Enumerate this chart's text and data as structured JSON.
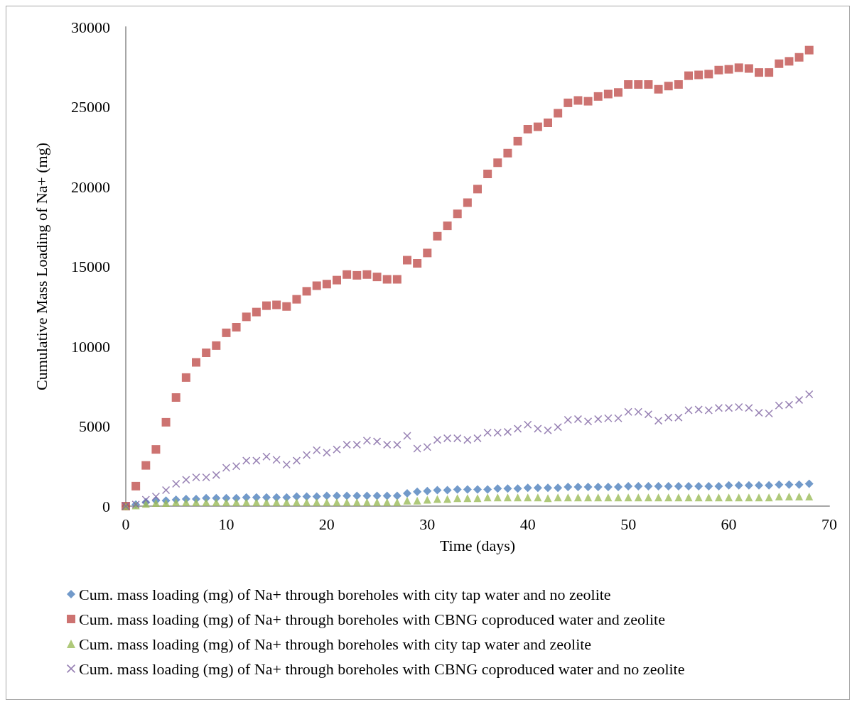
{
  "chart_data": {
    "type": "scatter",
    "xlabel": "Time (days)",
    "ylabel": "Cumulative Mass Loading of Na+ (mg)",
    "xlim": [
      0,
      70
    ],
    "xticks": [
      0,
      10,
      20,
      30,
      40,
      50,
      60,
      70
    ],
    "ylim": [
      0,
      30000
    ],
    "yticks": [
      0,
      5000,
      10000,
      15000,
      20000,
      25000,
      30000
    ],
    "grid": false,
    "legend": "bottom",
    "x": [
      0,
      1,
      2,
      3,
      4,
      5,
      6,
      7,
      8,
      9,
      10,
      11,
      12,
      13,
      14,
      15,
      16,
      17,
      18,
      19,
      20,
      21,
      22,
      23,
      24,
      25,
      26,
      27,
      28,
      29,
      30,
      31,
      32,
      33,
      34,
      35,
      36,
      37,
      38,
      39,
      40,
      41,
      42,
      43,
      44,
      45,
      46,
      47,
      48,
      49,
      50,
      51,
      52,
      53,
      54,
      55,
      56,
      57,
      58,
      59,
      60,
      61,
      62,
      63,
      64,
      65,
      66,
      67,
      68
    ],
    "series": [
      {
        "name": "Cum. mass loading (mg) of Na+ through boreholes with city tap water and no zeolite",
        "color": "#4f81bd",
        "marker": "diamond",
        "values": [
          0,
          100,
          250,
          350,
          350,
          400,
          450,
          450,
          500,
          500,
          500,
          500,
          550,
          550,
          550,
          550,
          550,
          600,
          600,
          600,
          650,
          650,
          650,
          650,
          650,
          650,
          650,
          650,
          800,
          900,
          950,
          1000,
          1000,
          1050,
          1050,
          1050,
          1050,
          1100,
          1100,
          1100,
          1150,
          1150,
          1150,
          1150,
          1200,
          1200,
          1200,
          1200,
          1200,
          1200,
          1250,
          1250,
          1250,
          1250,
          1250,
          1250,
          1250,
          1250,
          1250,
          1250,
          1300,
          1300,
          1300,
          1300,
          1300,
          1350,
          1350,
          1350,
          1400
        ]
      },
      {
        "name": "Cum. mass loading (mg) of Na+ through boreholes with CBNG coproduced water and zeolite",
        "color": "#c0504d",
        "marker": "square",
        "values": [
          0,
          1250,
          2550,
          3550,
          5250,
          6800,
          8050,
          9000,
          9600,
          10050,
          10850,
          11200,
          11850,
          12150,
          12550,
          12600,
          12500,
          12950,
          13450,
          13800,
          13900,
          14150,
          14500,
          14450,
          14500,
          14350,
          14200,
          14200,
          15400,
          15200,
          15850,
          16900,
          17550,
          18300,
          19000,
          19850,
          20800,
          21500,
          22100,
          22850,
          23600,
          23750,
          24000,
          24600,
          25250,
          25400,
          25350,
          25650,
          25800,
          25900,
          26400,
          26400,
          26400,
          26100,
          26300,
          26400,
          26950,
          27000,
          27050,
          27300,
          27350,
          27450,
          27400,
          27150,
          27150,
          27700,
          27850,
          28100,
          28550
        ]
      },
      {
        "name": "Cum. mass loading (mg) of Na+ through boreholes with city tap water and zeolite",
        "color": "#9bbb59",
        "marker": "triangle",
        "values": [
          0,
          50,
          150,
          200,
          200,
          250,
          250,
          250,
          250,
          250,
          250,
          250,
          250,
          250,
          250,
          250,
          250,
          250,
          250,
          250,
          250,
          250,
          250,
          250,
          250,
          250,
          250,
          250,
          350,
          350,
          400,
          450,
          450,
          500,
          500,
          500,
          550,
          550,
          550,
          550,
          550,
          550,
          500,
          550,
          550,
          550,
          550,
          550,
          550,
          550,
          550,
          550,
          550,
          550,
          550,
          550,
          550,
          550,
          550,
          550,
          550,
          550,
          550,
          550,
          550,
          600,
          600,
          600,
          600
        ]
      },
      {
        "name": "Cum. mass loading (mg) of Na+ through boreholes with CBNG coproduced water and no zeolite",
        "color": "#8064a2",
        "marker": "cross",
        "values": [
          0,
          100,
          400,
          600,
          1000,
          1400,
          1650,
          1800,
          1800,
          1950,
          2400,
          2500,
          2850,
          2850,
          3100,
          2900,
          2600,
          2850,
          3200,
          3500,
          3350,
          3550,
          3850,
          3850,
          4100,
          4050,
          3850,
          3850,
          4400,
          3600,
          3700,
          4150,
          4250,
          4250,
          4150,
          4250,
          4600,
          4600,
          4650,
          4850,
          5100,
          4850,
          4750,
          4950,
          5400,
          5450,
          5300,
          5450,
          5500,
          5500,
          5900,
          5900,
          5750,
          5350,
          5550,
          5550,
          6000,
          6050,
          6000,
          6150,
          6150,
          6200,
          6150,
          5850,
          5800,
          6300,
          6350,
          6650,
          7000
        ]
      }
    ]
  }
}
